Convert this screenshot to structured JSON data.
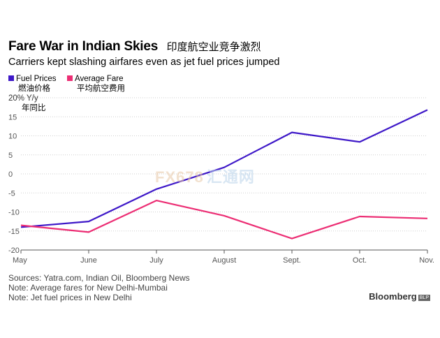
{
  "title": {
    "en": "Fare War in Indian Skies",
    "zh": "印度航空业竞争激烈"
  },
  "subtitle": "Carriers kept slashing airfares even as jet fuel prices jumped",
  "legend": [
    {
      "label": "Fuel Prices",
      "label_zh": "燃油价格",
      "color": "#3e18c8"
    },
    {
      "label": "Average Fare",
      "label_zh": "平均航空费用",
      "color": "#ec2e74"
    }
  ],
  "y_unit": {
    "top": "20% Y/y",
    "zh": "年同比"
  },
  "watermark": {
    "brand": "FX678",
    "cn": "汇通网"
  },
  "sources": [
    "Sources: Yatra.com, Indian Oil, Bloomberg News",
    "Note: Average fares for New Delhi-Mumbai",
    "Note: Jet fuel prices in New Delhi"
  ],
  "brand": {
    "name": "Bloomberg",
    "badge": "BLP"
  },
  "chart_data": {
    "type": "line",
    "title": "Fare War in Indian Skies",
    "categories": [
      "May",
      "June",
      "July",
      "August",
      "Sept.",
      "Oct.",
      "Nov."
    ],
    "ylim": [
      -20,
      20
    ],
    "yticks": [
      15,
      10,
      5,
      0,
      -5,
      -10,
      -15,
      -20
    ],
    "ylabel": "% Y/y",
    "grid": true,
    "legend_position": "top-left",
    "series": [
      {
        "name": "Fuel Prices",
        "color": "#3e18c8",
        "values": [
          -14,
          -12.5,
          -4,
          1.7,
          10.9,
          8.4,
          16.8
        ]
      },
      {
        "name": "Average Fare",
        "color": "#ec2e74",
        "values": [
          -13.5,
          -15.3,
          -7,
          -11,
          -17,
          -11.2,
          -11.7
        ]
      }
    ]
  }
}
